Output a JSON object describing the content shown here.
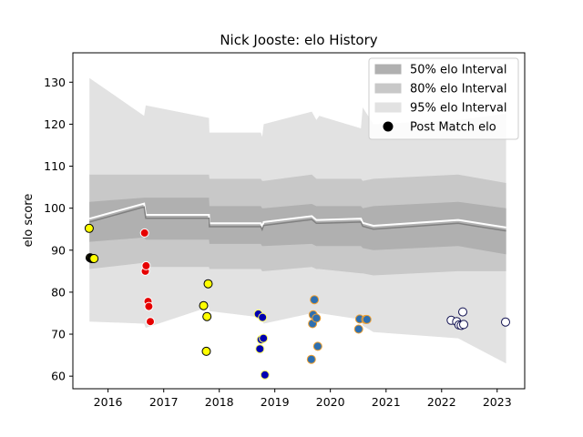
{
  "chart_data": {
    "type": "line",
    "title": "Nick Jooste: elo History",
    "ylabel": "elo score",
    "xlabel": "",
    "xlim": [
      "2015-05-15",
      "2023-07-01"
    ],
    "ylim": [
      57,
      137
    ],
    "x_ticks": [
      {
        "date": "2016-01-01",
        "label": "2016"
      },
      {
        "date": "2017-01-01",
        "label": "2017"
      },
      {
        "date": "2018-01-01",
        "label": "2018"
      },
      {
        "date": "2019-01-01",
        "label": "2019"
      },
      {
        "date": "2020-01-01",
        "label": "2020"
      },
      {
        "date": "2021-01-01",
        "label": "2021"
      },
      {
        "date": "2022-01-01",
        "label": "2022"
      },
      {
        "date": "2023-01-01",
        "label": "2023"
      }
    ],
    "y_ticks": [
      60,
      70,
      80,
      90,
      100,
      110,
      120,
      130
    ],
    "legend": {
      "position": "top-right",
      "entries": [
        {
          "label": "50% elo Interval",
          "kind": "band",
          "color": "#b0b0b0"
        },
        {
          "label": "80% elo Interval",
          "kind": "band",
          "color": "#c8c8c8"
        },
        {
          "label": "95% elo Interval",
          "kind": "band",
          "color": "#e2e2e2"
        },
        {
          "label": "Post Match elo",
          "kind": "marker",
          "color": "#000000"
        }
      ]
    },
    "elo_series": {
      "x": [
        "2015-09-01",
        "2016-08-25",
        "2016-09-05",
        "2017-10-25",
        "2017-10-28",
        "2018-10-01",
        "2018-10-10",
        "2018-10-20",
        "2019-09-01",
        "2019-10-01",
        "2019-10-20",
        "2020-07-20",
        "2020-08-01",
        "2020-10-10",
        "2022-04-20",
        "2023-03-01"
      ],
      "mean": [
        96.7,
        100.3,
        97.6,
        97.6,
        95.6,
        95.6,
        94.9,
        95.9,
        97.3,
        96.4,
        96.4,
        96.7,
        95.7,
        95.0,
        96.4,
        94.6
      ],
      "band50": [
        [
          92.0,
          101.5
        ],
        [
          93.0,
          102.5
        ],
        [
          92.5,
          102.5
        ],
        [
          92.5,
          102.5
        ],
        [
          91.5,
          100.5
        ],
        [
          91.5,
          100.5
        ],
        [
          91.0,
          100.0
        ],
        [
          91.0,
          100.0
        ],
        [
          91.5,
          101.0
        ],
        [
          91.0,
          100.5
        ],
        [
          91.0,
          100.5
        ],
        [
          91.0,
          100.5
        ],
        [
          90.5,
          100.0
        ],
        [
          90.0,
          100.5
        ],
        [
          91.0,
          101.5
        ],
        [
          89.0,
          100.0
        ]
      ],
      "band80": [
        [
          85.5,
          108.0
        ],
        [
          87.0,
          108.0
        ],
        [
          86.0,
          108.0
        ],
        [
          86.0,
          108.0
        ],
        [
          85.5,
          107.0
        ],
        [
          85.5,
          107.0
        ],
        [
          85.0,
          106.5
        ],
        [
          85.0,
          106.5
        ],
        [
          86.0,
          108.0
        ],
        [
          85.5,
          107.0
        ],
        [
          85.5,
          107.0
        ],
        [
          84.5,
          107.0
        ],
        [
          84.5,
          106.5
        ],
        [
          84.0,
          107.0
        ],
        [
          85.0,
          108.0
        ],
        [
          85.0,
          106.0
        ]
      ],
      "band95": [
        [
          73.0,
          131.0
        ],
        [
          72.5,
          122.0
        ],
        [
          71.5,
          124.5
        ],
        [
          76.5,
          121.5
        ],
        [
          75.5,
          118.0
        ],
        [
          74.0,
          118.0
        ],
        [
          73.5,
          117.0
        ],
        [
          72.5,
          120.0
        ],
        [
          75.0,
          123.0
        ],
        [
          75.5,
          121.0
        ],
        [
          75.0,
          122.0
        ],
        [
          73.5,
          119.0
        ],
        [
          72.0,
          124.0
        ],
        [
          70.5,
          120.0
        ],
        [
          69.0,
          121.0
        ],
        [
          63.0,
          122.5
        ]
      ]
    },
    "post_match": {
      "x": [
        "2015-08-30",
        "2015-09-05",
        "2015-09-10",
        "2015-09-15",
        "2015-09-20",
        "2015-09-25",
        "2015-10-01",
        "2016-08-28",
        "2016-09-02",
        "2016-09-07",
        "2016-09-20",
        "2016-09-25",
        "2016-10-05",
        "2017-09-20",
        "2017-10-08",
        "2017-10-12",
        "2017-10-20",
        "2018-09-15",
        "2018-09-25",
        "2018-10-03",
        "2018-10-12",
        "2018-10-18",
        "2018-10-28",
        "2019-08-29",
        "2019-09-06",
        "2019-09-10",
        "2019-09-18",
        "2019-10-01",
        "2019-10-10",
        "2020-07-05",
        "2020-07-12",
        "2020-08-20",
        "2020-08-28",
        "2022-03-05",
        "2022-04-10",
        "2022-04-25",
        "2022-05-10",
        "2022-05-20",
        "2022-05-26",
        "2023-02-25"
      ],
      "y": [
        95.2,
        88.2,
        88.1,
        88.0,
        88.0,
        88.0,
        88.0,
        94.1,
        85.0,
        86.3,
        77.8,
        76.6,
        73.0,
        76.8,
        65.9,
        74.2,
        82.0,
        74.8,
        66.5,
        68.7,
        74.0,
        69.0,
        60.3,
        64.0,
        72.5,
        74.6,
        78.2,
        73.8,
        67.1,
        71.2,
        73.6,
        73.5,
        73.5,
        73.3,
        73.0,
        72.2,
        72.1,
        75.3,
        72.3,
        72.9
      ],
      "group": [
        0,
        0,
        0,
        0,
        0,
        0,
        0,
        1,
        1,
        1,
        1,
        1,
        1,
        0,
        0,
        0,
        0,
        2,
        2,
        2,
        2,
        2,
        2,
        3,
        3,
        3,
        3,
        3,
        3,
        3,
        3,
        3,
        3,
        4,
        4,
        4,
        4,
        4,
        4,
        4
      ]
    },
    "marker_styles": [
      {
        "fill": "#ffff00",
        "edge": "#000000"
      },
      {
        "fill": "#e60000",
        "edge": "#ffffff"
      },
      {
        "fill": "#0000b0",
        "edge": "#ffff66"
      },
      {
        "fill": "#2e6fb0",
        "edge": "#f0a030"
      },
      {
        "fill": "#ffffff",
        "edge": "#101050"
      }
    ],
    "colors": {
      "band50": "#b0b0b0",
      "band80": "#c8c8c8",
      "band95": "#e2e2e2",
      "mean_line": "#808080",
      "prior_line": "#ffffff"
    }
  }
}
